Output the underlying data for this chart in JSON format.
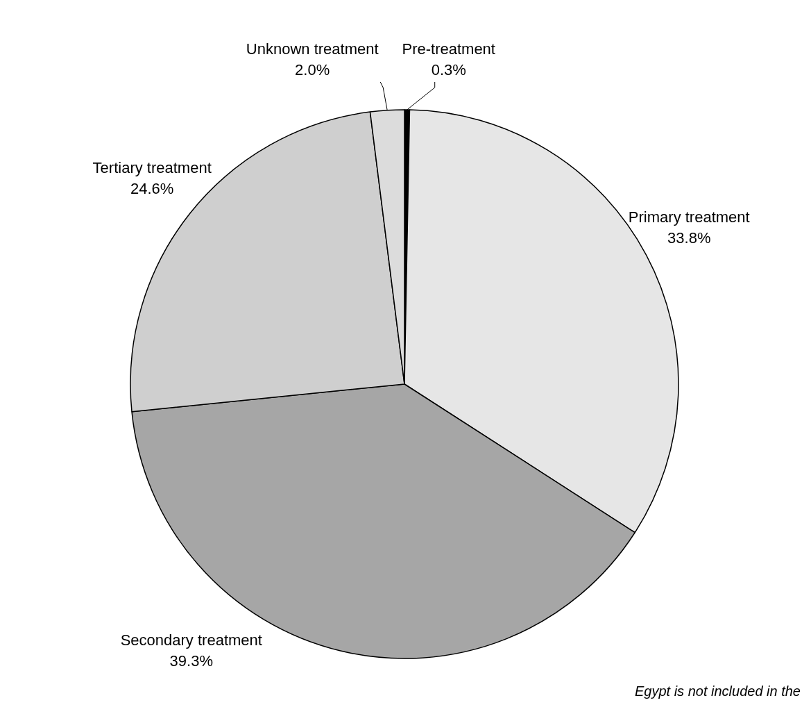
{
  "chart_data": {
    "type": "pie",
    "categories": [
      "Pre-treatment",
      "Primary treatment",
      "Secondary treatment",
      "Tertiary treatment",
      "Unknown treatment"
    ],
    "values": [
      0.3,
      33.8,
      39.3,
      24.6,
      2.0
    ],
    "colors": [
      "#000000",
      "#e6e6e6",
      "#a6a6a6",
      "#cfcfcf",
      "#dcdcdc"
    ],
    "value_labels": [
      "0.3%",
      "33.8%",
      "39.3%",
      "24.6%",
      "2.0%"
    ],
    "annotations": [
      "Egypt is not included in the"
    ]
  }
}
